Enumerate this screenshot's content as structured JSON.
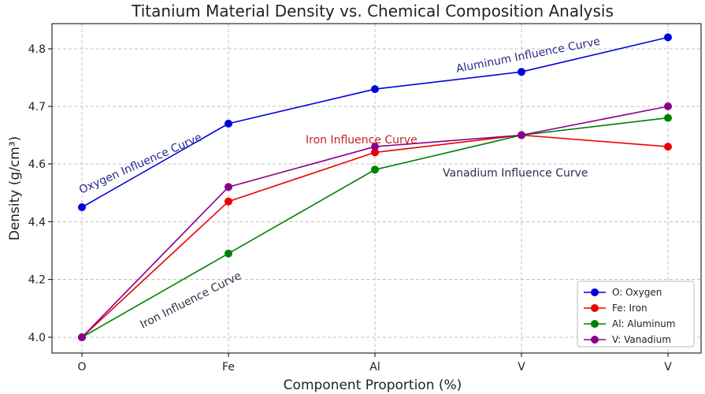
{
  "chart_data": {
    "type": "line",
    "title": "Titanium Material Density vs. Chemical Composition Analysis",
    "xlabel": "Component Proportion (%)",
    "ylabel": "Density (g/cm³)",
    "categories": [
      "O",
      "Fe",
      "Al",
      "V",
      "V"
    ],
    "y_ticks": [
      "4.0",
      "4.2",
      "4.4",
      "4.6",
      "4.7",
      "4.8"
    ],
    "grid": true,
    "legend_position": "bottom-right",
    "series": [
      {
        "name": "O: Oxygen",
        "color": "#0000dd",
        "values": [
          4.45,
          4.67,
          4.73,
          4.76,
          4.82
        ]
      },
      {
        "name": "Fe: Iron",
        "color": "#ee0000",
        "values": [
          4.0,
          4.47,
          4.62,
          4.65,
          4.63
        ]
      },
      {
        "name": "Al: Aluminum",
        "color": "#008000",
        "values": [
          4.0,
          4.29,
          4.58,
          4.65,
          4.68
        ]
      },
      {
        "name": "V: Vanadium",
        "color": "#8b008b",
        "values": [
          4.0,
          4.52,
          4.63,
          4.65,
          4.7
        ]
      }
    ],
    "annotations": [
      {
        "text": "Oxygen Influence Curve",
        "color": "#2a2a8a"
      },
      {
        "text": "Aluminum Influence Curve",
        "color": "#2a2a8a"
      },
      {
        "text": "Iron Influence Curve",
        "color": "#cc2222"
      },
      {
        "text": "Vanadium Influence Curve",
        "color": "#3a2a4a"
      },
      {
        "text": "Iron Influence Curve",
        "color": "#3a2a4a"
      }
    ]
  }
}
